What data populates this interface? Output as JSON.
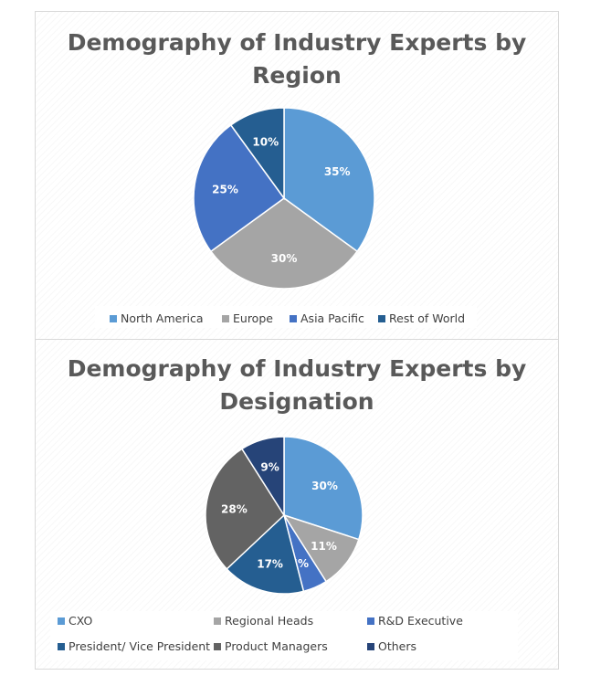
{
  "chart_data": [
    {
      "type": "pie",
      "title": "Demography of Industry Experts by Region",
      "title_lines": [
        "Demography of Industry Experts by",
        "Region"
      ],
      "categories": [
        "North America",
        "Europe",
        "Asia Pacific",
        "Rest of World"
      ],
      "values": [
        35,
        30,
        25,
        10
      ],
      "labels": [
        "35%",
        "30%",
        "25%",
        "10%"
      ],
      "colors": [
        "#5b9bd5",
        "#a5a5a5",
        "#4472c4",
        "#255e91"
      ],
      "legend_position": "bottom"
    },
    {
      "type": "pie",
      "title": "Demography of Industry Experts by Designation",
      "title_lines": [
        "Demography of Industry Experts by",
        "Designation"
      ],
      "categories": [
        "CXO",
        "Regional Heads",
        "R&D Executive",
        "President/ Vice President",
        "Product Managers",
        "Others"
      ],
      "values": [
        30,
        11,
        5,
        17,
        28,
        9
      ],
      "labels": [
        "30%",
        "11%",
        "5%",
        "17%",
        "28%",
        "9%"
      ],
      "colors": [
        "#5b9bd5",
        "#a5a5a5",
        "#4472c4",
        "#255e91",
        "#636363",
        "#264478"
      ],
      "legend_position": "bottom"
    }
  ]
}
